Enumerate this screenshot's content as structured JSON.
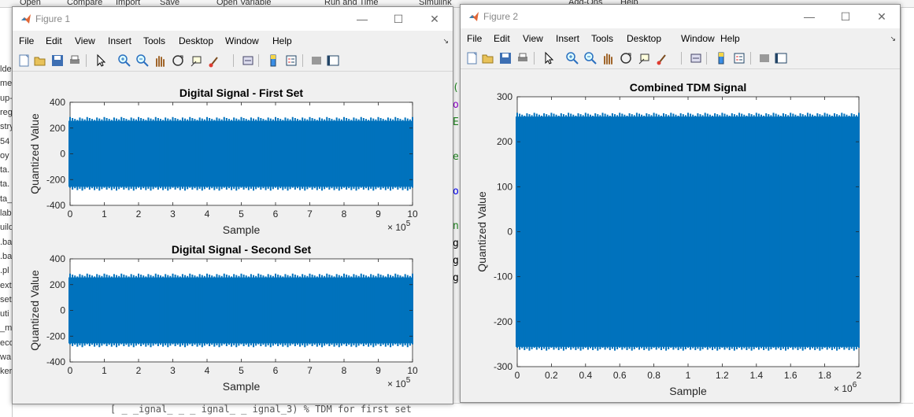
{
  "background": {
    "toolstrip_items": [
      "Open",
      "Compare",
      "Import",
      "Save",
      "Open Variable",
      "Run and Time",
      "Simulink",
      "Add-Ons",
      "Help"
    ],
    "left_fragments": [
      "lde",
      "me",
      "up-",
      "reg",
      "stry",
      "54",
      "oy",
      "ta.",
      "ta.",
      "ta_",
      "lab",
      "uild",
      ".ba",
      ".ba",
      ".pl",
      "ext",
      "set",
      "uti",
      "_m",
      "eco",
      "wa",
      "ker"
    ],
    "editor_fragments": [
      "(",
      "o",
      "E",
      "",
      "e",
      "",
      "o",
      "",
      "n",
      "g",
      "g",
      "g"
    ],
    "bottom_code": "[   _   _ignal_ _  _ ignal_   _ ignal_3)  % TDM for first set"
  },
  "colors": {
    "signal": "#0072BD",
    "axes_bg": "#ffffff",
    "figure_bg": "#f0f0f0"
  },
  "figure1": {
    "title": "Figure 1",
    "menu": [
      "File",
      "Edit",
      "View",
      "Insert",
      "Tools",
      "Desktop",
      "Window",
      "Help"
    ],
    "toolbar_icons": [
      "new-figure-icon",
      "open-icon",
      "save-icon",
      "print-icon",
      "edit-plot-icon",
      "zoom-in-icon",
      "zoom-out-icon",
      "pan-icon",
      "rotate-icon",
      "data-cursor-icon",
      "brush-icon",
      "link-icon",
      "colorbar-icon",
      "legend-icon",
      "hide-plot-tools-icon",
      "show-plot-tools-icon"
    ]
  },
  "figure2": {
    "title": "Figure 2",
    "menu": [
      "File",
      "Edit",
      "View",
      "Insert",
      "Tools",
      "Desktop",
      "Window",
      "Help"
    ],
    "toolbar_icons": [
      "new-figure-icon",
      "open-icon",
      "save-icon",
      "print-icon",
      "edit-plot-icon",
      "zoom-in-icon",
      "zoom-out-icon",
      "pan-icon",
      "rotate-icon",
      "data-cursor-icon",
      "brush-icon",
      "link-icon",
      "colorbar-icon",
      "legend-icon",
      "hide-plot-tools-icon",
      "show-plot-tools-icon"
    ]
  },
  "chart_data": [
    {
      "type": "line",
      "title": "Digital Signal - First Set",
      "xlabel": "Sample",
      "ylabel": "Quantized Value",
      "xlim": [
        0,
        1000000
      ],
      "ylim": [
        -400,
        400
      ],
      "x_ticks": [
        0,
        1,
        2,
        3,
        4,
        5,
        6,
        7,
        8,
        9,
        10
      ],
      "y_ticks": [
        400,
        200,
        0,
        -200,
        -400
      ],
      "x_exponent": "× 10",
      "x_exponent_power": "5",
      "series": [
        {
          "values_range": [
            -256,
            256
          ]
        }
      ],
      "grid": false
    },
    {
      "type": "line",
      "title": "Digital Signal - Second Set",
      "xlabel": "Sample",
      "ylabel": "Quantized Value",
      "xlim": [
        0,
        1000000
      ],
      "ylim": [
        -400,
        400
      ],
      "x_ticks": [
        0,
        1,
        2,
        3,
        4,
        5,
        6,
        7,
        8,
        9,
        10
      ],
      "y_ticks": [
        400,
        200,
        0,
        -200,
        -400
      ],
      "x_exponent": "× 10",
      "x_exponent_power": "5",
      "series": [
        {
          "values_range": [
            -256,
            256
          ]
        }
      ],
      "grid": false
    },
    {
      "type": "line",
      "title": "Combined TDM Signal",
      "xlabel": "Sample",
      "ylabel": "Quantized Value",
      "xlim": [
        0,
        2000000
      ],
      "ylim": [
        -300,
        300
      ],
      "x_ticks": [
        0,
        0.2,
        0.4,
        0.6,
        0.8,
        1,
        1.2,
        1.4,
        1.6,
        1.8,
        2
      ],
      "y_ticks": [
        300,
        200,
        100,
        0,
        -100,
        -200,
        -300
      ],
      "x_exponent": "× 10",
      "x_exponent_power": "6",
      "series": [
        {
          "values_range": [
            -256,
            256
          ]
        }
      ],
      "grid": false
    }
  ]
}
